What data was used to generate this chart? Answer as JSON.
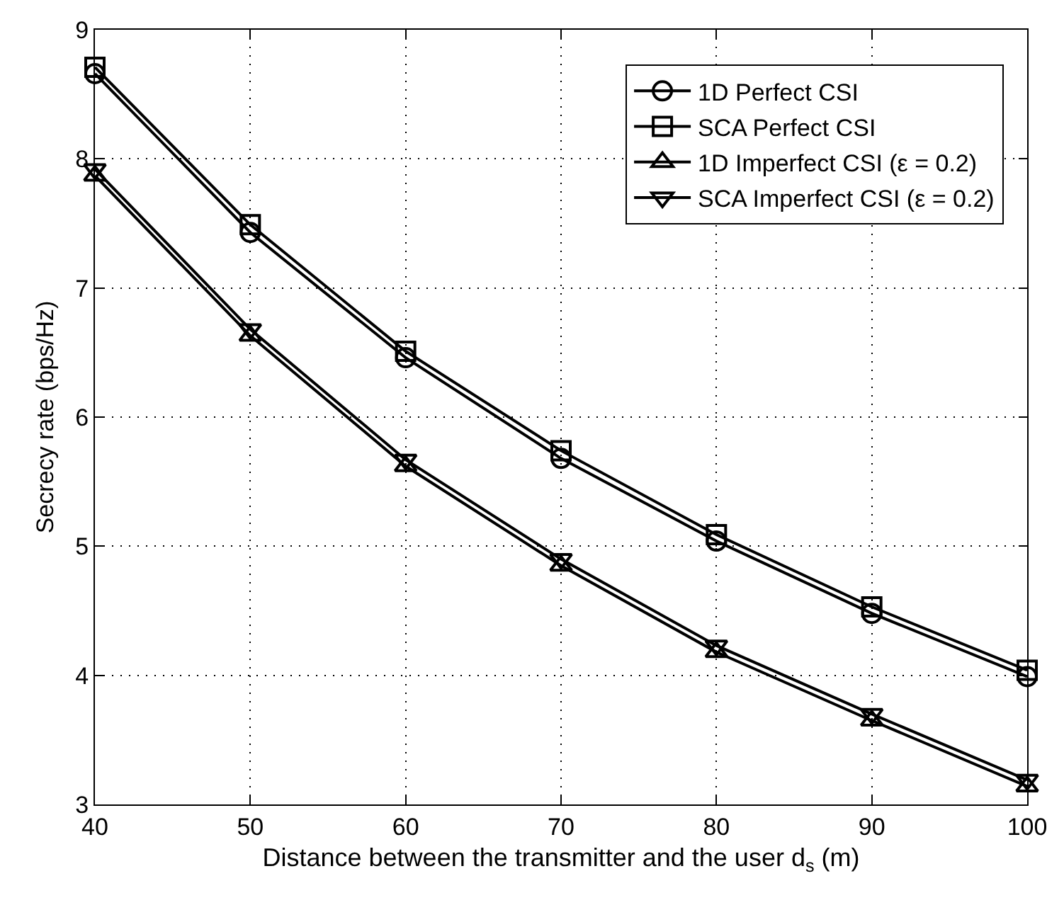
{
  "chart_data": {
    "type": "line",
    "xlabel": "Distance between the transmitter and the user d$_{s}$ (m)",
    "ylabel": "Secrecy rate (bps/Hz)",
    "x": [
      40,
      50,
      60,
      70,
      80,
      90,
      100
    ],
    "series": [
      {
        "name": "1D Perfect CSI",
        "color": "#000000",
        "marker": "circle",
        "values": [
          8.66,
          7.43,
          6.46,
          5.68,
          5.04,
          4.48,
          3.99
        ]
      },
      {
        "name": "SCA Perfect CSI",
        "color": "#000000",
        "marker": "square",
        "values": [
          8.71,
          7.49,
          6.51,
          5.74,
          5.09,
          4.53,
          4.04
        ]
      },
      {
        "name": "1D Imperfect CSI (ε = 0.2)",
        "color": "#000000",
        "marker": "triangle",
        "values": [
          7.87,
          6.63,
          5.62,
          4.85,
          4.18,
          3.65,
          3.14
        ]
      },
      {
        "name": "SCA Imperfect CSI (ε = 0.2)",
        "color": "#000000",
        "marker": "triangle-down",
        "values": [
          7.92,
          6.68,
          5.67,
          4.9,
          4.23,
          3.7,
          3.19
        ]
      }
    ],
    "xlim": [
      40,
      100
    ],
    "xticks": [
      40,
      50,
      60,
      70,
      80,
      90,
      100
    ],
    "ylim": [
      3,
      9
    ],
    "yticks": [
      3,
      4,
      5,
      6,
      7,
      8,
      9
    ],
    "grid": true,
    "legend": "top right",
    "line_style": "solid"
  }
}
